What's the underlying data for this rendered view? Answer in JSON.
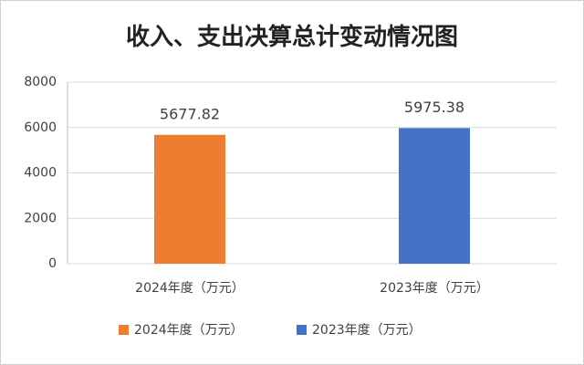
{
  "chart_data": {
    "type": "bar",
    "title": "收入、支出决算总计变动情况图",
    "categories": [
      "2024年度（万元）",
      "2023年度（万元）"
    ],
    "series": [
      {
        "name": "2024年度（万元）",
        "color": "#ed7d31",
        "values": [
          5677.82,
          null
        ]
      },
      {
        "name": "2023年度（万元）",
        "color": "#4472c4",
        "values": [
          null,
          5975.38
        ]
      }
    ],
    "ylim": [
      0,
      8000
    ],
    "yticks": [
      0,
      2000,
      4000,
      6000,
      8000
    ],
    "grid": true,
    "legend": "bottom"
  }
}
